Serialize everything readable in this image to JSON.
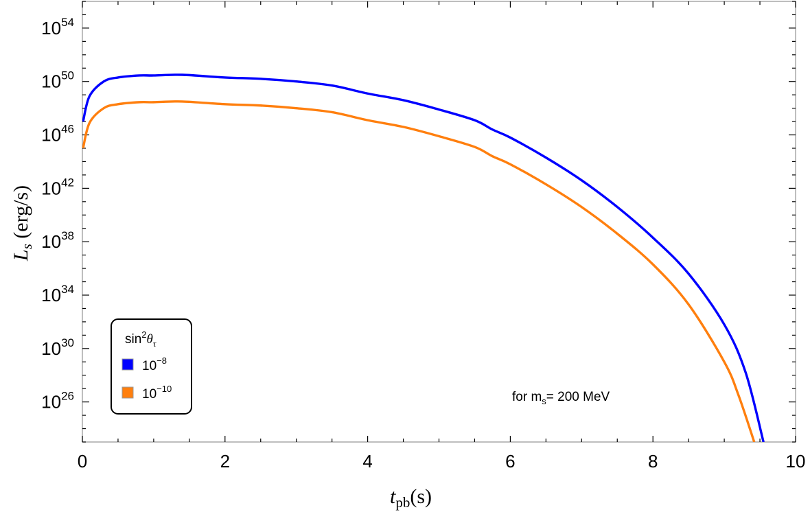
{
  "chart_data": {
    "type": "line",
    "title": "",
    "xlabel": "t_pb(s)",
    "ylabel": "L_s (erg/s)",
    "xlim": [
      0,
      10
    ],
    "ylim_log10": [
      23,
      56
    ],
    "yscale": "log",
    "x_ticks": [
      0,
      2,
      4,
      6,
      8,
      10
    ],
    "y_ticks_log10": [
      26,
      30,
      34,
      38,
      42,
      46,
      50,
      54
    ],
    "y_tick_labels": [
      "10^26",
      "10^30",
      "10^34",
      "10^38",
      "10^42",
      "10^46",
      "10^50",
      "10^54"
    ],
    "grid": false,
    "legend": {
      "title": "sin^2 θ_τ",
      "position": "lower-left",
      "entries": [
        "10^-8",
        "10^-10"
      ]
    },
    "annotation": "for m_s= 200 MeV",
    "series": [
      {
        "name": "10^-8",
        "color": "#0000ff",
        "x": [
          0.01,
          0.1,
          0.3,
          0.5,
          0.8,
          1.0,
          1.4,
          2.0,
          2.5,
          3.0,
          3.5,
          4.0,
          4.5,
          5.0,
          5.5,
          5.75,
          6.0,
          6.5,
          7.0,
          7.5,
          8.0,
          8.5,
          9.0,
          9.3,
          9.55
        ],
        "log10_y": [
          47.0,
          48.9,
          50.0,
          50.3,
          50.45,
          50.45,
          50.5,
          50.3,
          50.2,
          50.0,
          49.7,
          49.1,
          48.6,
          47.9,
          47.1,
          46.4,
          45.8,
          44.3,
          42.6,
          40.6,
          38.3,
          35.6,
          31.8,
          28.2,
          23.0
        ]
      },
      {
        "name": "10^-10",
        "color": "#ff7f0e",
        "x": [
          0.01,
          0.1,
          0.3,
          0.5,
          0.8,
          1.0,
          1.4,
          2.0,
          2.5,
          3.0,
          3.5,
          4.0,
          4.5,
          5.0,
          5.5,
          5.75,
          6.0,
          6.5,
          7.0,
          7.5,
          8.0,
          8.5,
          9.0,
          9.2,
          9.42
        ],
        "log10_y": [
          45.0,
          46.9,
          48.0,
          48.3,
          48.45,
          48.45,
          48.5,
          48.3,
          48.2,
          48.0,
          47.7,
          47.1,
          46.6,
          45.9,
          45.1,
          44.4,
          43.8,
          42.3,
          40.6,
          38.6,
          36.3,
          33.3,
          29.0,
          26.5,
          23.0
        ]
      }
    ]
  },
  "axes": {
    "x_tick_labels": [
      "0",
      "2",
      "4",
      "6",
      "8",
      "10"
    ],
    "y_tick_bases": [
      "10",
      "10",
      "10",
      "10",
      "10",
      "10",
      "10",
      "10"
    ],
    "y_tick_exponents": [
      "26",
      "30",
      "34",
      "38",
      "42",
      "46",
      "50",
      "54"
    ],
    "xlabel_main": "t",
    "xlabel_sub": "pb",
    "xlabel_unit": "(s)",
    "ylabel_main": "L",
    "ylabel_sub": "s",
    "ylabel_unit": " (erg/s)"
  },
  "legend": {
    "title_main": "sin",
    "title_sup": "2",
    "title_theta": "θ",
    "title_sub": "τ",
    "items": [
      {
        "base": "10",
        "exp": "−8",
        "color": "#0000ff"
      },
      {
        "base": "10",
        "exp": "−10",
        "color": "#ff7f0e"
      }
    ]
  },
  "annotation": {
    "prefix": "for m",
    "sub": "s",
    "suffix": "= 200 MeV"
  }
}
